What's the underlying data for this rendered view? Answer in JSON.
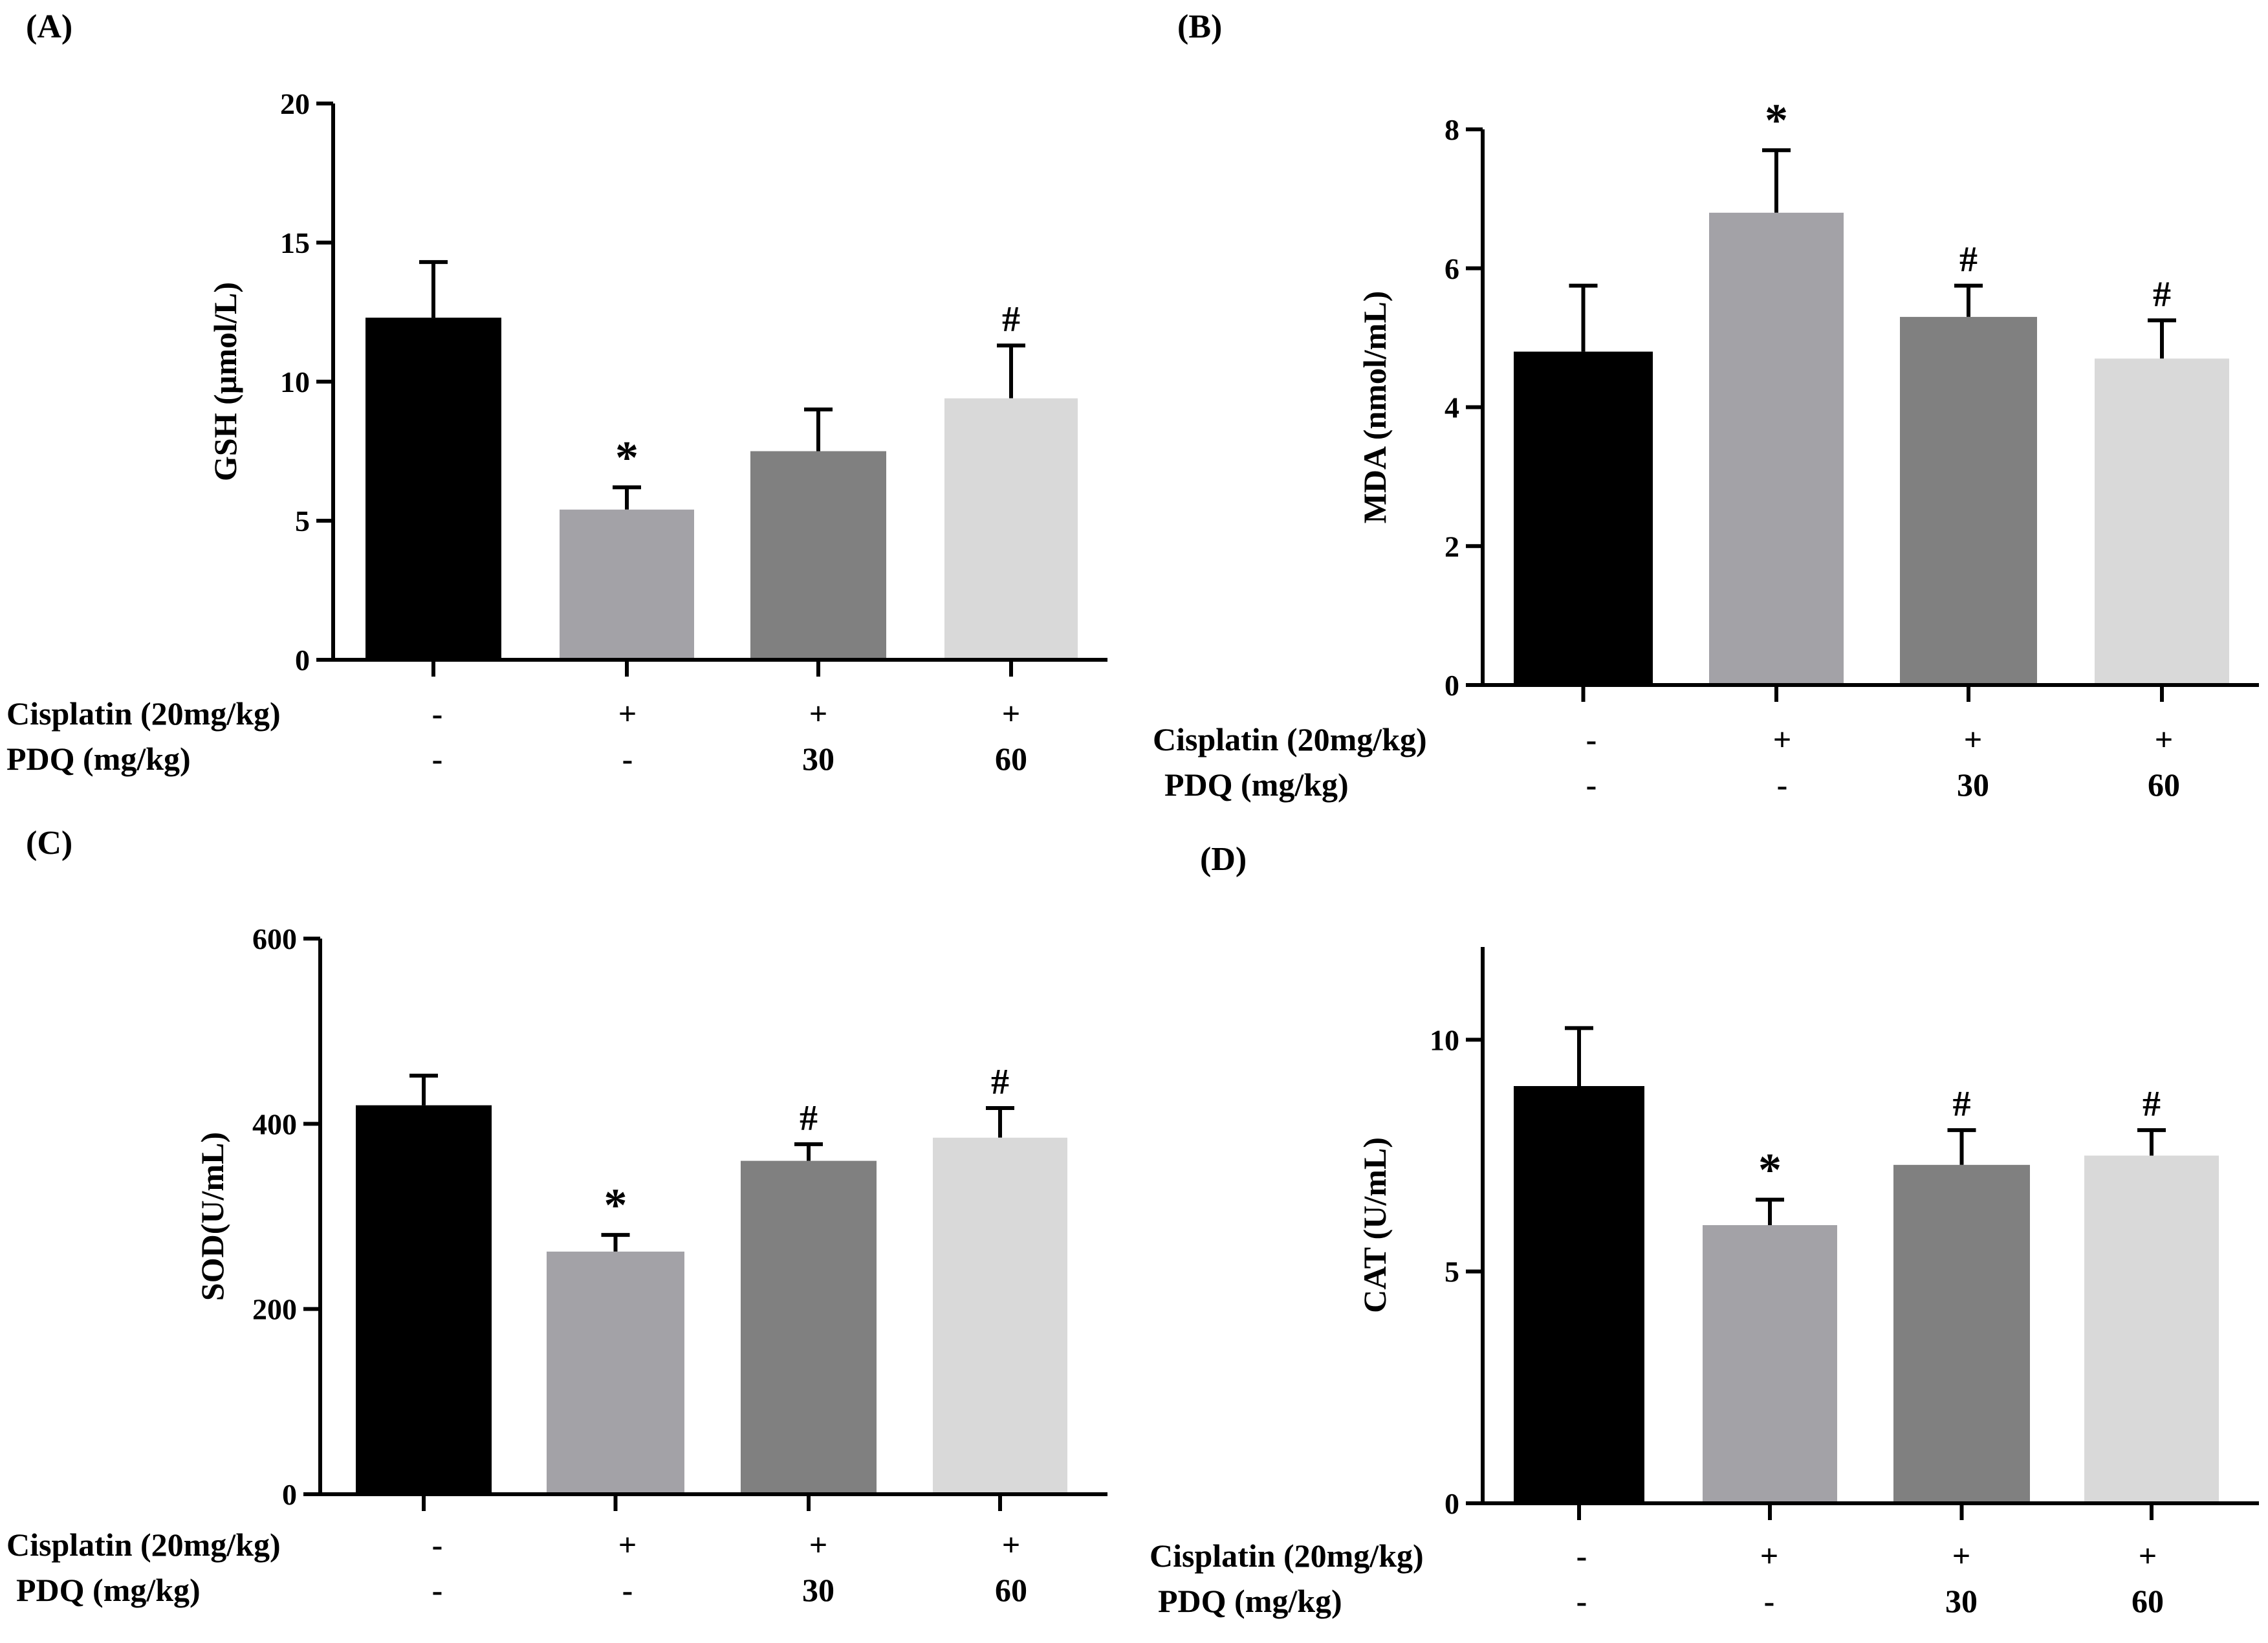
{
  "colors": [
    "#000000",
    "#a3a2a7",
    "#808080",
    "#d9d9d9"
  ],
  "chart_data": [
    {
      "type": "bar",
      "panel_label": "(A)",
      "ylabel": "GSH (µmol/L)",
      "ylim": [
        0,
        20
      ],
      "yticks": [
        "0",
        "5",
        "10",
        "15",
        "20"
      ],
      "values": [
        12.3,
        5.4,
        7.5,
        9.4
      ],
      "errors": [
        2.0,
        0.8,
        1.5,
        1.9
      ],
      "annotations": [
        "",
        "*",
        "",
        "#"
      ],
      "row_labels": [
        "Cisplatin (20mg/kg)",
        "PDQ (mg/kg)"
      ],
      "cisplatin": [
        "-",
        "+",
        "+",
        "+"
      ],
      "pdq": [
        "-",
        "-",
        "30",
        "60"
      ]
    },
    {
      "type": "bar",
      "panel_label": "(B)",
      "ylabel": "MDA (nmol/mL)",
      "ylim": [
        0,
        8
      ],
      "yticks": [
        "0",
        "2",
        "4",
        "6",
        "8"
      ],
      "values": [
        4.8,
        6.8,
        5.3,
        4.7
      ],
      "errors": [
        0.95,
        0.9,
        0.45,
        0.55
      ],
      "annotations": [
        "",
        "*",
        "#",
        "#"
      ],
      "row_labels": [
        "Cisplatin (20mg/kg)",
        "PDQ (mg/kg)"
      ],
      "cisplatin": [
        "-",
        "+",
        "+",
        "+"
      ],
      "pdq": [
        "-",
        "-",
        "30",
        "60"
      ]
    },
    {
      "type": "bar",
      "panel_label": "(C)",
      "ylabel": "SOD(U/mL)",
      "ylim": [
        0,
        600
      ],
      "yticks": [
        "0",
        "200",
        "400",
        "600"
      ],
      "values": [
        420,
        262,
        360,
        385
      ],
      "errors": [
        32,
        18,
        18,
        32
      ],
      "annotations": [
        "",
        "*",
        "#",
        "#"
      ],
      "row_labels": [
        "Cisplatin (20mg/kg)",
        "PDQ (mg/kg)"
      ],
      "cisplatin": [
        "-",
        "+",
        "+",
        "+"
      ],
      "pdq": [
        "-",
        "-",
        "30",
        "60"
      ]
    },
    {
      "type": "bar",
      "panel_label": "(D)",
      "ylabel": "CAT (U/mL)",
      "ylim": [
        0,
        12
      ],
      "yticks": [
        "0",
        "5",
        "10"
      ],
      "values": [
        9.0,
        6.0,
        7.3,
        7.5
      ],
      "errors": [
        1.25,
        0.55,
        0.75,
        0.55
      ],
      "annotations": [
        "",
        "*",
        "#",
        "#"
      ],
      "row_labels": [
        "Cisplatin (20mg/kg)",
        "PDQ (mg/kg)"
      ],
      "cisplatin": [
        "-",
        "+",
        "+",
        "+"
      ],
      "pdq": [
        "-",
        "-",
        "30",
        "60"
      ]
    }
  ]
}
